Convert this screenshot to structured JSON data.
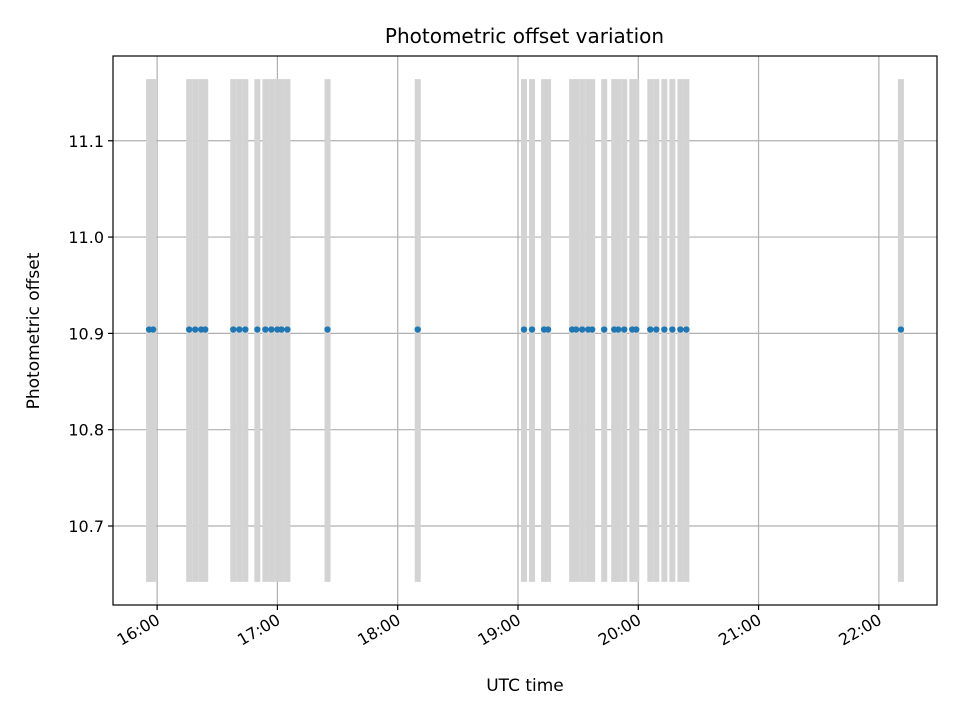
{
  "chart_data": {
    "type": "scatter",
    "title": "Photometric offset variation",
    "xlabel": "UTC time",
    "ylabel": "Photometric offset",
    "grid": true,
    "xlim": [
      "15:38",
      "22:29"
    ],
    "ylim": [
      10.618,
      11.188
    ],
    "x_ticks": [
      "16:00",
      "17:00",
      "18:00",
      "19:00",
      "20:00",
      "21:00",
      "22:00"
    ],
    "y_ticks": [
      10.7,
      10.8,
      10.9,
      11.0,
      11.1
    ],
    "y_tick_labels": [
      "10.7",
      "10.8",
      "10.9",
      "11.0",
      "11.1"
    ],
    "band_range": [
      10.642,
      11.164
    ],
    "colors": {
      "points": "#1f77b4",
      "bands": "#d3d3d3",
      "grid": "#b0b0b0"
    },
    "series": [
      {
        "x": [
          "15:56",
          "15:58",
          "16:16",
          "16:19",
          "16:22",
          "16:24",
          "16:38",
          "16:41",
          "16:44",
          "16:50",
          "16:54",
          "16:57",
          "17:00",
          "17:02",
          "17:05",
          "17:25",
          "18:10",
          "19:03",
          "19:07",
          "19:13",
          "19:15",
          "19:27",
          "19:29",
          "19:32",
          "19:35",
          "19:37",
          "19:43",
          "19:48",
          "19:50",
          "19:53",
          "19:57",
          "19:59",
          "20:06",
          "20:09",
          "20:13",
          "20:17",
          "20:21",
          "20:24"
        ],
        "y": [
          10.904,
          10.904,
          10.904,
          10.904,
          10.904,
          10.904,
          10.904,
          10.904,
          10.904,
          10.904,
          10.904,
          10.904,
          10.904,
          10.904,
          10.904,
          10.904,
          10.904,
          10.904,
          10.904,
          10.904,
          10.904,
          10.904,
          10.904,
          10.904,
          10.904,
          10.904,
          10.904,
          10.904,
          10.904,
          10.904,
          10.904,
          10.904,
          10.904,
          10.904,
          10.904,
          10.904,
          10.904,
          10.904
        ]
      },
      {
        "x": [
          "22:11"
        ],
        "y": [
          10.904
        ]
      }
    ]
  }
}
